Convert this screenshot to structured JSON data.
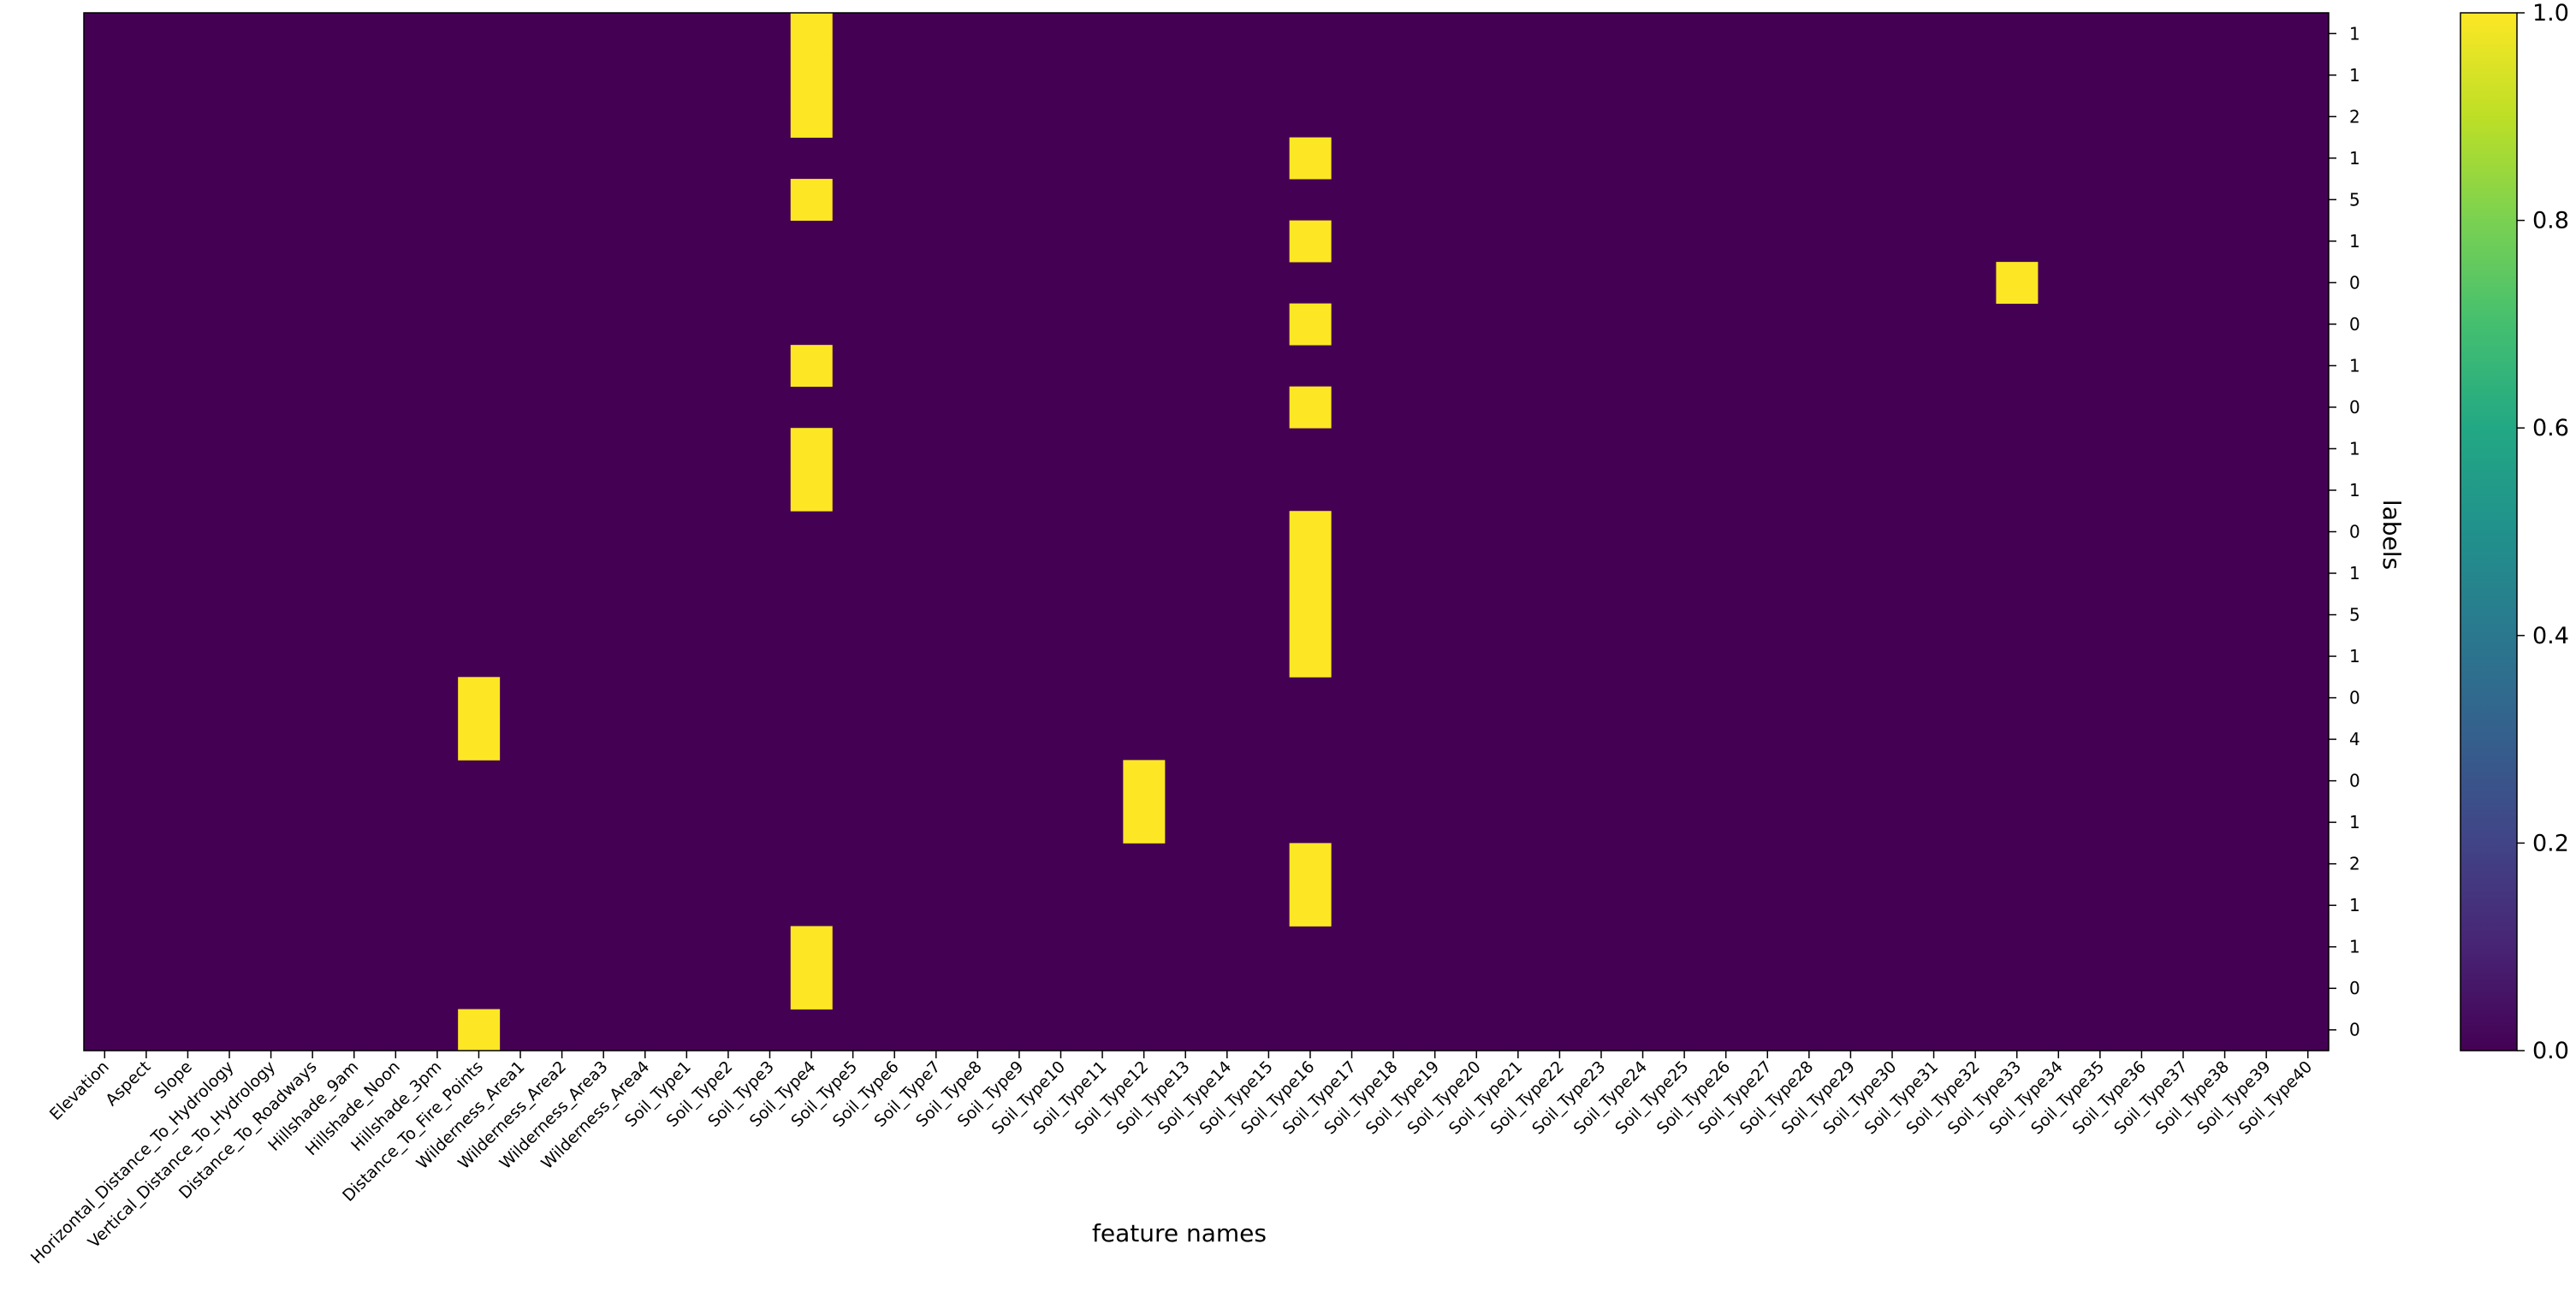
{
  "chart_data": {
    "type": "heatmap",
    "title": "",
    "xlabel": "feature names",
    "ylabel": "labels",
    "x_categories": [
      "Elevation",
      "Aspect",
      "Slope",
      "Horizontal_Distance_To_Hydrology",
      "Vertical_Distance_To_Hydrology",
      "Distance_To_Roadways",
      "Hillshade_9am",
      "Hillshade_Noon",
      "Hillshade_3pm",
      "Distance_To_Fire_Points",
      "Wilderness_Area1",
      "Wilderness_Area2",
      "Wilderness_Area3",
      "Wilderness_Area4",
      "Soil_Type1",
      "Soil_Type2",
      "Soil_Type3",
      "Soil_Type4",
      "Soil_Type5",
      "Soil_Type6",
      "Soil_Type7",
      "Soil_Type8",
      "Soil_Type9",
      "Soil_Type10",
      "Soil_Type11",
      "Soil_Type12",
      "Soil_Type13",
      "Soil_Type14",
      "Soil_Type15",
      "Soil_Type16",
      "Soil_Type17",
      "Soil_Type18",
      "Soil_Type19",
      "Soil_Type20",
      "Soil_Type21",
      "Soil_Type22",
      "Soil_Type23",
      "Soil_Type24",
      "Soil_Type25",
      "Soil_Type26",
      "Soil_Type27",
      "Soil_Type28",
      "Soil_Type29",
      "Soil_Type30",
      "Soil_Type31",
      "Soil_Type32",
      "Soil_Type33",
      "Soil_Type34",
      "Soil_Type35",
      "Soil_Type36",
      "Soil_Type37",
      "Soil_Type38",
      "Soil_Type39",
      "Soil_Type40"
    ],
    "y_labels": [
      "1",
      "1",
      "2",
      "1",
      "5",
      "1",
      "0",
      "0",
      "1",
      "0",
      "1",
      "1",
      "0",
      "1",
      "5",
      "1",
      "0",
      "4",
      "0",
      "1",
      "2",
      "1",
      "1",
      "0",
      "0"
    ],
    "value_range": [
      0,
      1
    ],
    "colorbar_ticks": [
      "0.0",
      "0.2",
      "0.4",
      "0.6",
      "0.8",
      "1.0"
    ],
    "colormap": "viridis",
    "low_color": "#440154",
    "high_color": "#fde725",
    "cells_equal_one": [
      [
        0,
        17
      ],
      [
        1,
        17
      ],
      [
        2,
        17
      ],
      [
        3,
        29
      ],
      [
        4,
        17
      ],
      [
        5,
        29
      ],
      [
        6,
        46
      ],
      [
        7,
        29
      ],
      [
        8,
        17
      ],
      [
        9,
        29
      ],
      [
        10,
        17
      ],
      [
        11,
        17
      ],
      [
        12,
        29
      ],
      [
        13,
        29
      ],
      [
        14,
        29
      ],
      [
        15,
        29
      ],
      [
        16,
        9
      ],
      [
        17,
        9
      ],
      [
        18,
        25
      ],
      [
        19,
        25
      ],
      [
        20,
        29
      ],
      [
        21,
        29
      ],
      [
        22,
        17
      ],
      [
        23,
        17
      ],
      [
        24,
        9
      ]
    ]
  }
}
